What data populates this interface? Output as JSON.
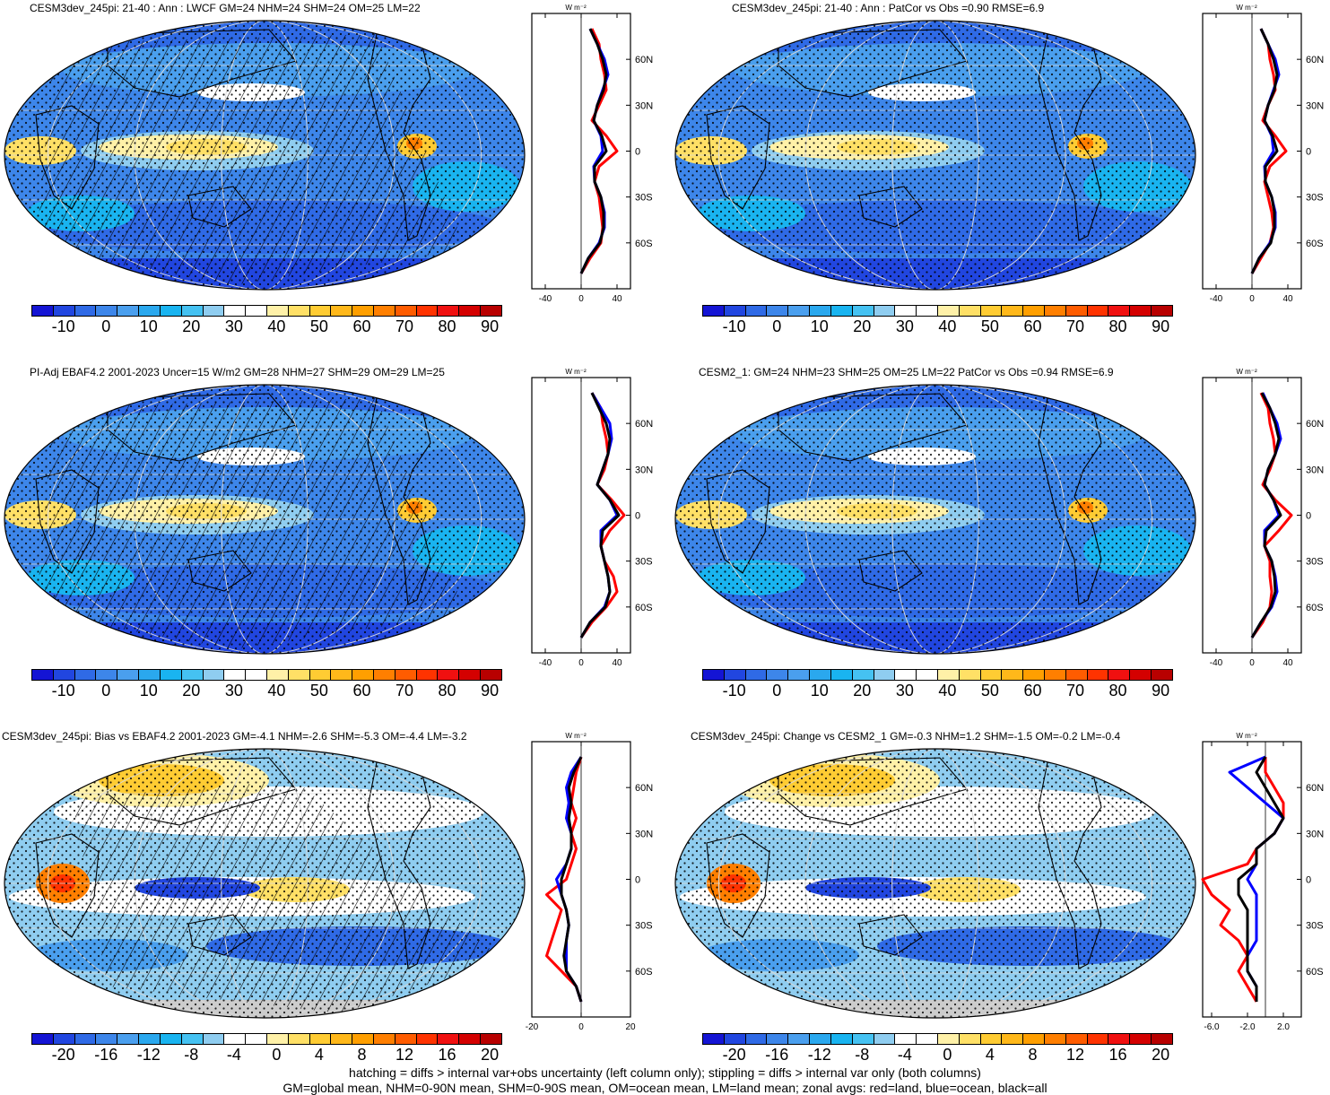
{
  "panels": [
    {
      "title": "CESM3dev_245pi: 21-40 : Ann : LWCF GM=24 NHM=24 SHM=24 OM=25 LM=22",
      "map_type": "abs",
      "hatching": true,
      "colorbar": "abs",
      "zonal_axis": "abs"
    },
    {
      "title": "CESM3dev_245pi: 21-40 : Ann : PatCor vs Obs =0.90 RMSE=6.9",
      "map_type": "abs",
      "hatching": false,
      "colorbar": "abs",
      "zonal_axis": "abs"
    },
    {
      "title": "PI-Adj EBAF4.2 2001-2023 Uncer=15 W/m2 GM=28 NHM=27 SHM=29 OM=29 LM=25",
      "map_type": "abs",
      "hatching": true,
      "colorbar": "abs",
      "zonal_axis": "abs"
    },
    {
      "title": "CESM2_1: GM=24 NHM=23 SHM=25 OM=25 LM=22 PatCor vs Obs =0.94 RMSE=6.9",
      "map_type": "abs",
      "hatching": false,
      "colorbar": "abs",
      "zonal_axis": "abs"
    },
    {
      "title": "CESM3dev_245pi: Bias vs EBAF4.2 2001-2023 GM=-4.1 NHM=-2.6 SHM=-5.3 OM=-4.4 LM=-3.2",
      "map_type": "diff",
      "hatching": true,
      "colorbar": "diff",
      "zonal_axis": "bias"
    },
    {
      "title": "CESM3dev_245pi: Change vs CESM2_1 GM=-0.3 NHM=1.2 SHM=-1.5 OM=-0.2 LM=-0.4",
      "map_type": "diff",
      "hatching": false,
      "colorbar": "diff",
      "zonal_axis": "change"
    }
  ],
  "colorbars": {
    "abs": {
      "labels": [
        "-10",
        "0",
        "10",
        "20",
        "30",
        "40",
        "50",
        "60",
        "70",
        "80",
        "90"
      ],
      "colors": [
        "#1414d4",
        "#2146e0",
        "#2f6ae6",
        "#3d86ea",
        "#4a9fee",
        "#2aa8ee",
        "#19b4f0",
        "#45c2f2",
        "#8fcdf0",
        "#ffffff",
        "#ffffff",
        "#fff1a8",
        "#ffe066",
        "#ffcc33",
        "#ffb81a",
        "#ff9f00",
        "#ff7f00",
        "#ff5c00",
        "#ff3300",
        "#f01010",
        "#d40000",
        "#b80000"
      ]
    },
    "diff": {
      "labels": [
        "-20",
        "-16",
        "-12",
        "-8",
        "-4",
        "0",
        "4",
        "8",
        "12",
        "16",
        "20"
      ],
      "colors": [
        "#1414d4",
        "#2146e0",
        "#2f6ae6",
        "#3d86ea",
        "#4a9fee",
        "#2aa8ee",
        "#19b4f0",
        "#45c2f2",
        "#8fcdf0",
        "#ffffff",
        "#ffffff",
        "#fff1a8",
        "#ffe066",
        "#ffcc33",
        "#ffb81a",
        "#ff9f00",
        "#ff7f00",
        "#ff5c00",
        "#ff3300",
        "#f01010",
        "#d40000",
        "#b80000"
      ]
    }
  },
  "zonal_axes": {
    "abs": {
      "xticks": [
        "-40",
        "0",
        "40"
      ],
      "xtick_values": [
        -40,
        0,
        40
      ],
      "xlim": [
        -55,
        55
      ]
    },
    "bias": {
      "xticks": [
        "-20",
        "0",
        "20"
      ],
      "xtick_values": [
        -20,
        0,
        20
      ],
      "xlim": [
        -20,
        20
      ]
    },
    "change": {
      "xticks": [
        "-6.0",
        "-2.0",
        "2.0"
      ],
      "xtick_values": [
        -6,
        -2,
        2
      ],
      "xlim": [
        -7,
        4
      ]
    },
    "unit": "W m⁻²",
    "lat_labels": [
      "60N",
      "30N",
      "0",
      "30S",
      "60S"
    ],
    "lat_values": [
      60,
      30,
      0,
      -30,
      -60
    ]
  },
  "chart_data": [
    {
      "type": "line",
      "title": "CESM3dev_245pi LWCF zonal mean",
      "x_unit": "W m-2",
      "y": "latitude",
      "lat": [
        -80,
        -70,
        -60,
        -50,
        -40,
        -30,
        -20,
        -10,
        0,
        10,
        20,
        30,
        40,
        50,
        60,
        70,
        80
      ],
      "series": [
        {
          "name": "land",
          "color": "#ff0000",
          "values": [
            0,
            10,
            22,
            24,
            22,
            20,
            15,
            20,
            40,
            28,
            12,
            20,
            28,
            26,
            22,
            20,
            12
          ]
        },
        {
          "name": "ocean",
          "color": "#0000ff",
          "values": [
            0,
            8,
            20,
            26,
            26,
            22,
            15,
            14,
            24,
            22,
            14,
            18,
            24,
            30,
            26,
            18,
            10
          ]
        },
        {
          "name": "all",
          "color": "#000000",
          "values": [
            0,
            8,
            21,
            25,
            25,
            22,
            15,
            15,
            28,
            23,
            14,
            18,
            25,
            28,
            24,
            18,
            10
          ]
        }
      ]
    },
    {
      "type": "line",
      "title": "CESM3dev_245pi PatCor zonal mean",
      "x_unit": "W m-2",
      "y": "latitude",
      "lat": [
        -80,
        -70,
        -60,
        -50,
        -40,
        -30,
        -20,
        -10,
        0,
        10,
        20,
        30,
        40,
        50,
        60,
        70,
        80
      ],
      "series": [
        {
          "name": "land",
          "color": "#ff0000",
          "values": [
            0,
            10,
            20,
            24,
            22,
            18,
            14,
            20,
            38,
            26,
            12,
            18,
            26,
            24,
            20,
            18,
            10
          ]
        },
        {
          "name": "ocean",
          "color": "#0000ff",
          "values": [
            0,
            8,
            20,
            26,
            26,
            22,
            15,
            14,
            24,
            22,
            14,
            18,
            24,
            30,
            26,
            18,
            10
          ]
        },
        {
          "name": "all",
          "color": "#000000",
          "values": [
            0,
            8,
            21,
            25,
            25,
            22,
            15,
            15,
            28,
            23,
            14,
            18,
            25,
            28,
            24,
            18,
            10
          ]
        }
      ]
    },
    {
      "type": "line",
      "title": "PI-Adj EBAF4.2 zonal mean",
      "x_unit": "W m-2",
      "y": "latitude",
      "lat": [
        -80,
        -70,
        -60,
        -50,
        -40,
        -30,
        -20,
        -10,
        0,
        10,
        20,
        30,
        40,
        50,
        60,
        70,
        80
      ],
      "series": [
        {
          "name": "land",
          "color": "#ff0000",
          "values": [
            0,
            12,
            28,
            40,
            36,
            26,
            22,
            32,
            48,
            34,
            18,
            26,
            30,
            28,
            24,
            22,
            12
          ]
        },
        {
          "name": "ocean",
          "color": "#0000ff",
          "values": [
            0,
            10,
            26,
            32,
            30,
            26,
            22,
            22,
            40,
            32,
            18,
            24,
            30,
            34,
            32,
            22,
            12
          ]
        },
        {
          "name": "all",
          "color": "#000000",
          "values": [
            0,
            10,
            27,
            32,
            30,
            26,
            22,
            24,
            42,
            32,
            18,
            24,
            30,
            32,
            28,
            20,
            12
          ]
        }
      ]
    },
    {
      "type": "line",
      "title": "CESM2_1 zonal mean",
      "x_unit": "W m-2",
      "y": "latitude",
      "lat": [
        -80,
        -70,
        -60,
        -50,
        -40,
        -30,
        -20,
        -10,
        0,
        10,
        20,
        30,
        40,
        50,
        60,
        70,
        80
      ],
      "series": [
        {
          "name": "land",
          "color": "#ff0000",
          "values": [
            0,
            12,
            20,
            22,
            20,
            20,
            14,
            30,
            44,
            26,
            12,
            20,
            26,
            24,
            20,
            18,
            10
          ]
        },
        {
          "name": "ocean",
          "color": "#0000ff",
          "values": [
            0,
            10,
            22,
            28,
            26,
            22,
            14,
            14,
            30,
            24,
            14,
            18,
            26,
            32,
            28,
            20,
            12
          ]
        },
        {
          "name": "all",
          "color": "#000000",
          "values": [
            0,
            10,
            21,
            26,
            25,
            22,
            14,
            16,
            32,
            24,
            14,
            18,
            26,
            30,
            26,
            20,
            11
          ]
        }
      ]
    },
    {
      "type": "line",
      "title": "Bias vs EBAF4.2 zonal mean",
      "x_unit": "W m-2",
      "y": "latitude",
      "lat": [
        -80,
        -70,
        -60,
        -50,
        -40,
        -30,
        -20,
        -10,
        0,
        10,
        20,
        30,
        40,
        50,
        60,
        70,
        80
      ],
      "series": [
        {
          "name": "land",
          "color": "#ff0000",
          "values": [
            0,
            -2,
            -8,
            -14,
            -12,
            -10,
            -8,
            -14,
            -6,
            -4,
            -2,
            -4,
            -2,
            -4,
            -3,
            -2,
            0
          ]
        },
        {
          "name": "ocean",
          "color": "#0000ff",
          "values": [
            0,
            -2,
            -6,
            -6,
            -6,
            -5,
            -6,
            -8,
            -10,
            -6,
            -4,
            -4,
            -6,
            -5,
            -6,
            -4,
            0
          ]
        },
        {
          "name": "all",
          "color": "#000000",
          "values": [
            0,
            -2,
            -6,
            -7,
            -6,
            -5,
            -6,
            -8,
            -8,
            -6,
            -4,
            -4,
            -5,
            -4,
            -5,
            -3,
            0
          ]
        }
      ]
    },
    {
      "type": "line",
      "title": "Change vs CESM2_1 zonal mean",
      "x_unit": "W m-2",
      "y": "latitude",
      "lat": [
        -80,
        -70,
        -60,
        -50,
        -40,
        -30,
        -20,
        -10,
        0,
        10,
        20,
        30,
        40,
        50,
        60,
        70,
        80
      ],
      "series": [
        {
          "name": "land",
          "color": "#ff0000",
          "values": [
            -1,
            -2,
            -3,
            -2,
            -3,
            -5,
            -4,
            -6,
            -7,
            -2,
            -1,
            1,
            2,
            2,
            1,
            0,
            0
          ]
        },
        {
          "name": "ocean",
          "color": "#0000ff",
          "values": [
            -1,
            -1,
            -2,
            -2,
            -1,
            -1,
            -1,
            -1,
            -2,
            -1,
            -1,
            1,
            2,
            0,
            -2,
            -4,
            0
          ]
        },
        {
          "name": "all",
          "color": "#000000",
          "values": [
            -1,
            -1,
            -2,
            -2,
            -2,
            -2,
            -2,
            -3,
            -3,
            -1,
            -1,
            1,
            2,
            1,
            0,
            -1,
            0
          ]
        }
      ]
    }
  ],
  "footer": {
    "line1": "hatching = diffs > internal var+obs uncertainty (left column only); stippling = diffs > internal var only (both columns)",
    "line2": "GM=global mean, NHM=0-90N mean, SHM=0-90S mean, OM=ocean mean, LM=land mean; zonal avgs: red=land, blue=ocean, black=all"
  }
}
